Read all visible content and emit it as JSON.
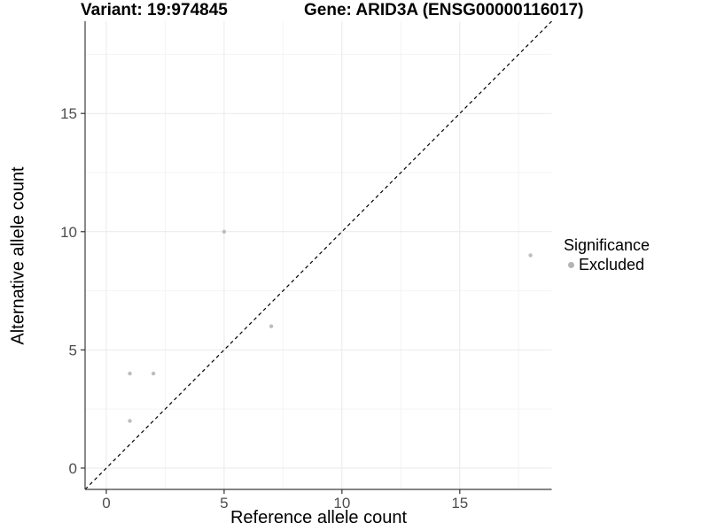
{
  "header": {
    "variant_title": "Variant: 19:974845",
    "gene_title": "Gene: ARID3A (ENSG00000116017)"
  },
  "chart_data": {
    "type": "scatter",
    "xlabel": "Reference allele count",
    "ylabel": "Alternative allele count",
    "xlim": [
      -0.9,
      18.9
    ],
    "ylim": [
      -0.9,
      18.9
    ],
    "x_ticks": [
      0,
      5,
      10,
      15
    ],
    "y_ticks": [
      0,
      5,
      10,
      15
    ],
    "x_minor_ticks": [
      2.5,
      7.5,
      12.5,
      17.5
    ],
    "y_minor_ticks": [
      2.5,
      7.5,
      12.5,
      17.5
    ],
    "grid": "on",
    "legend": {
      "title": "Significance",
      "position": "right",
      "items": [
        {
          "label": "Excluded",
          "color": "#b3b3b3"
        }
      ]
    },
    "series": [
      {
        "name": "Excluded",
        "color": "#bdbdbd",
        "points": [
          {
            "x": 1,
            "y": 2
          },
          {
            "x": 1,
            "y": 4
          },
          {
            "x": 2,
            "y": 4
          },
          {
            "x": 5,
            "y": 10
          },
          {
            "x": 7,
            "y": 6
          },
          {
            "x": 18,
            "y": 9
          }
        ]
      }
    ],
    "identity_line": {
      "style": "dashed",
      "slope": 1,
      "intercept": 0,
      "color": "#000000"
    }
  },
  "colors": {
    "background": "#ffffff",
    "point": "#bdbdbd",
    "grid_major": "#e9e9e9",
    "grid_minor": "#f4f4f4",
    "axis_line": "#3c3c3c",
    "tick_mark": "#333333",
    "tick_label": "#4d4d4d",
    "axis_title": "#000000",
    "identity_line": "#000000"
  }
}
